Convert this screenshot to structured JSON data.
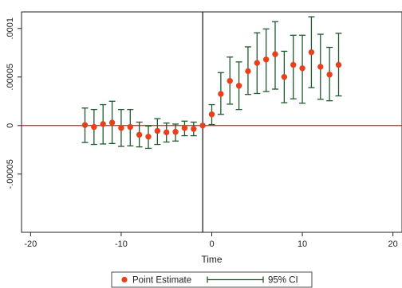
{
  "chart_data": {
    "type": "scatter",
    "xlabel": "Time",
    "ylabel": "",
    "xlim": [
      -21,
      21
    ],
    "ylim": [
      -0.00011,
      0.000117
    ],
    "x_ticks": [
      -20,
      -10,
      0,
      10,
      20
    ],
    "y_ticks": [
      -5e-05,
      0,
      5e-05,
      0.0001
    ],
    "y_tick_labels": [
      "-.00005",
      "0",
      ".00005",
      ".0001"
    ],
    "grid": false,
    "reference_lines": {
      "vertical_x": -1,
      "horizontal_y": 0
    },
    "legend": {
      "position": "bottom",
      "entries": [
        "Point Estimate",
        "95% CI"
      ]
    },
    "colors": {
      "point": "#e8401a",
      "ci": "#1f5a2e",
      "hline": "#c8202a",
      "vline": "#111111"
    },
    "series": [
      {
        "name": "Point Estimate",
        "x": [
          -14,
          -13,
          -12,
          -11,
          -10,
          -9,
          -8,
          -7,
          -6,
          -5,
          -4,
          -3,
          -2,
          -1,
          0,
          1,
          2,
          3,
          4,
          5,
          6,
          7,
          8,
          9,
          10,
          11,
          12,
          13,
          14
        ],
        "values": [
          5e-07,
          -1.5e-06,
          1.5e-06,
          3e-06,
          -2.5e-06,
          -1.5e-06,
          -9.5e-06,
          -1.15e-05,
          -5.5e-06,
          -7e-06,
          -6.5e-06,
          -2.5e-06,
          -3.5e-06,
          0.0,
          1.15e-05,
          3.25e-05,
          4.6e-05,
          4.1e-05,
          5.6e-05,
          6.45e-05,
          6.8e-05,
          7.35e-05,
          5e-05,
          6.25e-05,
          5.9e-05,
          7.55e-05,
          6.05e-05,
          5.25e-05,
          6.25e-05
        ]
      },
      {
        "name": "95% CI",
        "x": [
          -14,
          -13,
          -12,
          -11,
          -10,
          -9,
          -8,
          -7,
          -6,
          -5,
          -4,
          -3,
          -2,
          -1,
          0,
          1,
          2,
          3,
          4,
          5,
          6,
          7,
          8,
          9,
          10,
          11,
          12,
          13,
          14
        ],
        "lower": [
          -1.75e-05,
          -1.95e-05,
          -1.9e-05,
          -1.85e-05,
          -2.15e-05,
          -2.1e-05,
          -2.2e-05,
          -2.35e-05,
          -1.95e-05,
          -1.7e-05,
          -1.6e-05,
          -1.05e-05,
          -1.05e-05,
          0.0,
          1e-06,
          1.15e-05,
          2.2e-05,
          1.65e-05,
          3.2e-05,
          3.3e-05,
          3.5e-05,
          3.75e-05,
          2.35e-05,
          2.75e-05,
          2.3e-05,
          3.9e-05,
          2.7e-05,
          2.55e-05,
          3.05e-05
        ],
        "upper": [
          1.8e-05,
          1.65e-05,
          2.15e-05,
          2.5e-05,
          1.65e-05,
          1.65e-05,
          3.5e-06,
          -5e-07,
          7e-06,
          2.5e-06,
          1.5e-06,
          4.5e-06,
          3.5e-06,
          0.0,
          2.15e-05,
          5.45e-05,
          7.05e-05,
          6.55e-05,
          8.1e-05,
          9.55e-05,
          9.95e-05,
          0.000107,
          7.65e-05,
          9.3e-05,
          9.3e-05,
          0.000112,
          9.4e-05,
          8.05e-05,
          9.5e-05
        ]
      }
    ]
  }
}
